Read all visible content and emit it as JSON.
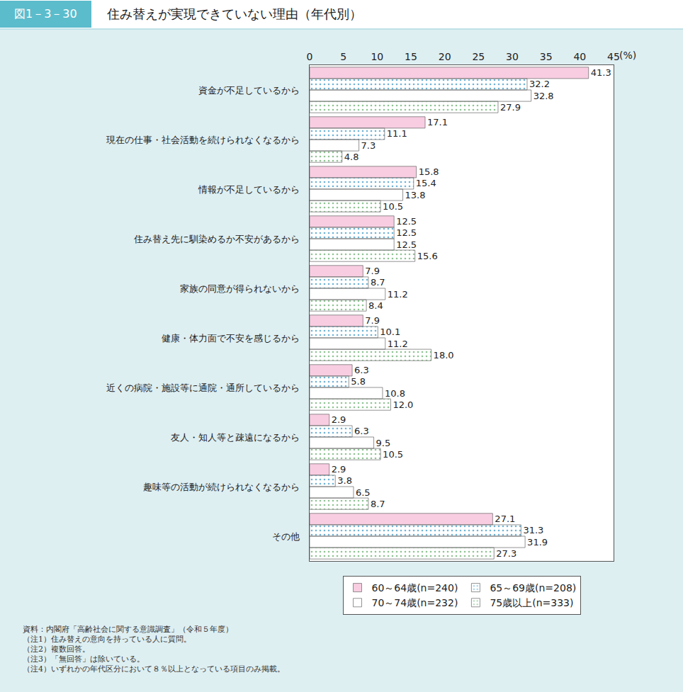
{
  "chart_data": {
    "type": "bar",
    "orientation": "horizontal",
    "figure_label": "図1－3－30",
    "title": "住み替えが実現できていない理由（年代別）",
    "x_label": "(%)",
    "categories": [
      "資金が不足しているから",
      "現在の仕事・社会活動を続けられなくなるから",
      "情報が不足しているから",
      "住み替え先に馴染めるか不安があるから",
      "家族の同意が得られないから",
      "健康・体力面で不安を感じるから",
      "近くの病院・施設等に通院・通所しているから",
      "友人・知人等と疎遠になるから",
      "趣味等の活動が続けられなくなるから",
      "その他"
    ],
    "series": [
      {
        "name": "60～64歳(n=240)",
        "color": "#f8cde1",
        "marker": "plain",
        "values": [
          41.3,
          17.1,
          15.8,
          12.5,
          7.9,
          7.9,
          6.3,
          2.9,
          2.9,
          27.1
        ],
        "value_labels": [
          "41.3",
          "17.1",
          "15.8",
          "12.5",
          "7.9",
          "7.9",
          "6.3",
          "2.9",
          "2.9",
          "27.1"
        ]
      },
      {
        "name": "65～69歳(n=208)",
        "color": "#c3e7f8",
        "marker": "dots",
        "values": [
          32.2,
          11.1,
          15.4,
          12.5,
          8.7,
          10.1,
          5.8,
          6.3,
          3.8,
          31.3
        ],
        "value_labels": [
          "32.2",
          "11.1",
          "15.4",
          "12.5",
          "8.7",
          "10.1",
          "5.8",
          "6.3",
          "3.8",
          "31.3"
        ]
      },
      {
        "name": "70～74歳(n=232)",
        "color": "#f3863a",
        "marker": "stripes",
        "values": [
          32.8,
          7.3,
          13.8,
          12.5,
          11.2,
          11.2,
          10.8,
          9.5,
          6.5,
          31.9
        ],
        "value_labels": [
          "32.8",
          "7.3",
          "13.8",
          "12.5",
          "11.2",
          "11.2",
          "10.8",
          "9.5",
          "6.5",
          "31.9"
        ]
      },
      {
        "name": "75歳以上(n=333)",
        "color": "#c6e5c8",
        "marker": "dots",
        "values": [
          27.9,
          4.8,
          10.5,
          15.6,
          8.4,
          18.0,
          12.0,
          10.5,
          8.7,
          27.3
        ],
        "value_labels": [
          "27.9",
          "4.8",
          "10.5",
          "15.6",
          "8.4",
          "18.0",
          "12.0",
          "10.5",
          "8.7",
          "27.3"
        ]
      }
    ],
    "xlim": [
      0,
      45
    ],
    "xticks": [
      0,
      5,
      10,
      15,
      20,
      25,
      30,
      35,
      40,
      45
    ],
    "grid": false,
    "legend": "bottom",
    "data_labels": true,
    "notes": [
      "資料：内閣府「高齢社会に関する意識調査」（令和５年度）",
      "（注1）住み替えの意向を持っている人に質問。",
      "（注2）複数回答。",
      "（注3）「無回答」は除いている。",
      "（注4）いずれかの年代区分において８％以上となっている項目のみ掲載。"
    ]
  }
}
